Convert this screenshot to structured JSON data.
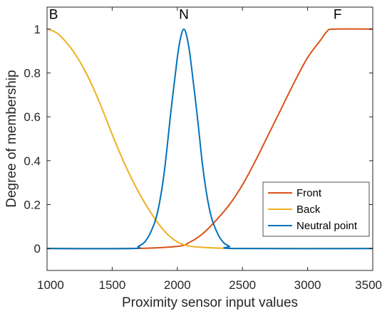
{
  "chart_data": {
    "type": "line",
    "xlabel": "Proximity sensor input values",
    "ylabel": "Degree of membership",
    "xlim": [
      1000,
      3500
    ],
    "ylim": [
      -0.1,
      1.1
    ],
    "xticks": [
      1000,
      1500,
      2000,
      2500,
      3000,
      3500
    ],
    "yticks": [
      0,
      0.2,
      0.4,
      0.6,
      0.8,
      1
    ],
    "xtick_labels": [
      "1000",
      "1500",
      "2000",
      "2500",
      "3000",
      "3500"
    ],
    "ytick_labels": [
      "0",
      "0.2",
      "0.4",
      "0.6",
      "0.8",
      "1"
    ],
    "grid": false,
    "legend_position": "bottom-right",
    "series": [
      {
        "name": "Front",
        "color": "#D95319",
        "x": [
          1000,
          1650,
          2000,
          2100,
          2200,
          2300,
          2400,
          2500,
          2600,
          2700,
          2800,
          2900,
          3000,
          3100,
          3150,
          3200,
          3500
        ],
        "y": [
          0,
          0,
          0.01,
          0.03,
          0.07,
          0.13,
          0.2,
          0.29,
          0.4,
          0.52,
          0.64,
          0.76,
          0.87,
          0.95,
          0.99,
          1,
          1
        ]
      },
      {
        "name": "Back",
        "color": "#EDB120",
        "x": [
          1000,
          1050,
          1100,
          1200,
          1300,
          1400,
          1500,
          1600,
          1700,
          1800,
          1900,
          2000,
          2100,
          2200,
          2300,
          2400,
          2500,
          3500
        ],
        "y": [
          1,
          0.99,
          0.97,
          0.9,
          0.8,
          0.67,
          0.52,
          0.38,
          0.26,
          0.16,
          0.08,
          0.03,
          0.01,
          0.005,
          0.002,
          0.001,
          0,
          0
        ]
      },
      {
        "name": "Neutral point",
        "color": "#0072BD",
        "x": [
          1000,
          1650,
          1700,
          1750,
          1800,
          1850,
          1900,
          1950,
          2000,
          2025,
          2050,
          2075,
          2100,
          2150,
          2200,
          2250,
          2300,
          2350,
          2400,
          2450,
          3500
        ],
        "y": [
          0,
          0,
          0.01,
          0.03,
          0.08,
          0.17,
          0.35,
          0.62,
          0.87,
          0.96,
          1,
          0.96,
          0.87,
          0.62,
          0.35,
          0.17,
          0.08,
          0.03,
          0.01,
          0,
          0
        ]
      }
    ],
    "annotations": [
      {
        "text": "B",
        "x": 1050,
        "y": 1.07
      },
      {
        "text": "N",
        "x": 2050,
        "y": 1.07
      },
      {
        "text": "F",
        "x": 3230,
        "y": 1.07
      }
    ]
  }
}
